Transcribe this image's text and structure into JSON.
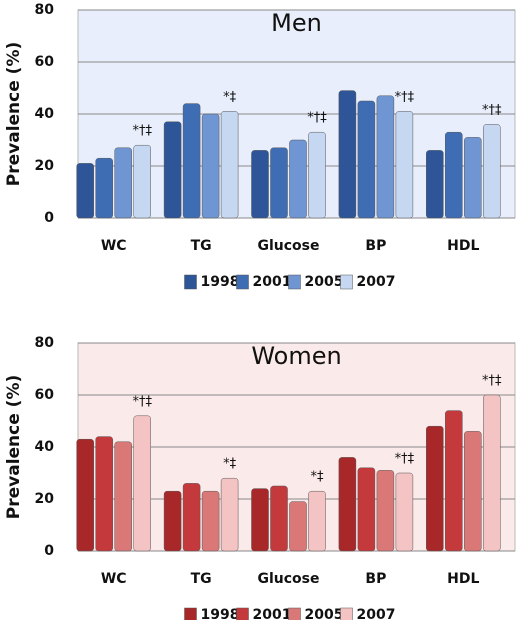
{
  "chart_data": [
    {
      "type": "bar",
      "title": "Men",
      "ylabel": "Prevalence (%)",
      "categories": [
        "WC",
        "TG",
        "Glucose",
        "BP",
        "HDL"
      ],
      "annotations": [
        "*†‡",
        "*‡",
        "*†‡",
        "*†‡",
        "*†‡"
      ],
      "ylim": [
        0,
        80
      ],
      "yticks": [
        0,
        20,
        40,
        60,
        80
      ],
      "grid": true,
      "background": "#e8eefb",
      "series": [
        {
          "name": "1998",
          "color": "#2d5597",
          "values": [
            21,
            37,
            26,
            49,
            26
          ]
        },
        {
          "name": "2001",
          "color": "#3e6db3",
          "values": [
            23,
            44,
            27,
            45,
            33
          ]
        },
        {
          "name": "2005",
          "color": "#6f95d2",
          "values": [
            27,
            40,
            30,
            47,
            31
          ]
        },
        {
          "name": "2007",
          "color": "#c6d7f1",
          "values": [
            28,
            41,
            33,
            41,
            36
          ]
        }
      ]
    },
    {
      "type": "bar",
      "title": "Women",
      "ylabel": "Prevalence (%)",
      "categories": [
        "WC",
        "TG",
        "Glucose",
        "BP",
        "HDL"
      ],
      "annotations": [
        "*†‡",
        "*‡",
        "*‡",
        "*†‡",
        "*†‡"
      ],
      "ylim": [
        0,
        80
      ],
      "yticks": [
        0,
        20,
        40,
        60,
        80
      ],
      "grid": true,
      "background": "#fbeaea",
      "series": [
        {
          "name": "1998",
          "color": "#a8282a",
          "values": [
            43,
            23,
            24,
            36,
            48
          ]
        },
        {
          "name": "2001",
          "color": "#c43a3c",
          "values": [
            44,
            26,
            25,
            32,
            54
          ]
        },
        {
          "name": "2005",
          "color": "#da7878",
          "values": [
            42,
            23,
            19,
            31,
            46
          ]
        },
        {
          "name": "2007",
          "color": "#f4c4c4",
          "values": [
            52,
            28,
            23,
            30,
            60
          ]
        }
      ]
    }
  ]
}
